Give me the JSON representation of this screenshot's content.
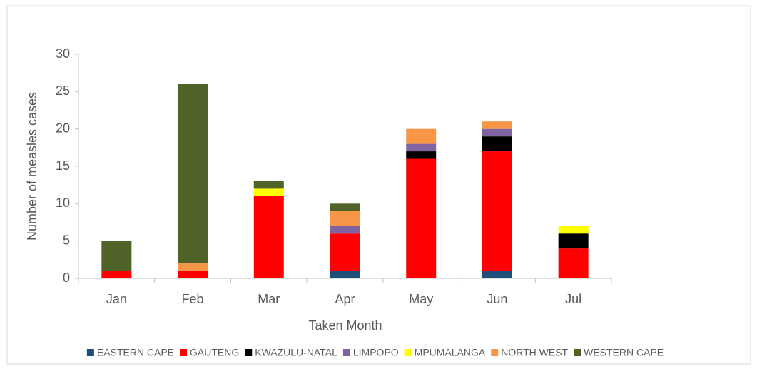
{
  "chart_data": {
    "type": "stacked_bar",
    "y_label": "Number of measles cases",
    "x_label": "Taken Month",
    "categories": [
      "Jan",
      "Feb",
      "Mar",
      "Apr",
      "May",
      "Jun",
      "Jul"
    ],
    "series": [
      {
        "name": "EASTERN CAPE",
        "color": "#1f4e79",
        "values": [
          0,
          0,
          0,
          1,
          0,
          1,
          0
        ]
      },
      {
        "name": "GAUTENG",
        "color": "#ff0000",
        "values": [
          1,
          1,
          11,
          5,
          16,
          16,
          4
        ]
      },
      {
        "name": "KWAZULU-NATAL",
        "color": "#000000",
        "values": [
          0,
          0,
          0,
          0,
          1,
          2,
          2
        ]
      },
      {
        "name": "LIMPOPO",
        "color": "#8064a2",
        "values": [
          0,
          0,
          0,
          1,
          1,
          1,
          0
        ]
      },
      {
        "name": "MPUMALANGA",
        "color": "#ffff00",
        "values": [
          0,
          0,
          1,
          0,
          0,
          0,
          1
        ]
      },
      {
        "name": "NORTH WEST",
        "color": "#f79646",
        "values": [
          0,
          1,
          0,
          2,
          2,
          1,
          0
        ]
      },
      {
        "name": "WESTERN CAPE",
        "color": "#4f6228",
        "values": [
          4,
          24,
          1,
          1,
          0,
          0,
          0
        ]
      }
    ],
    "ylim": [
      0,
      30
    ],
    "yticks": [
      0,
      5,
      10,
      15,
      20,
      25,
      30
    ],
    "legend": "bottom"
  }
}
